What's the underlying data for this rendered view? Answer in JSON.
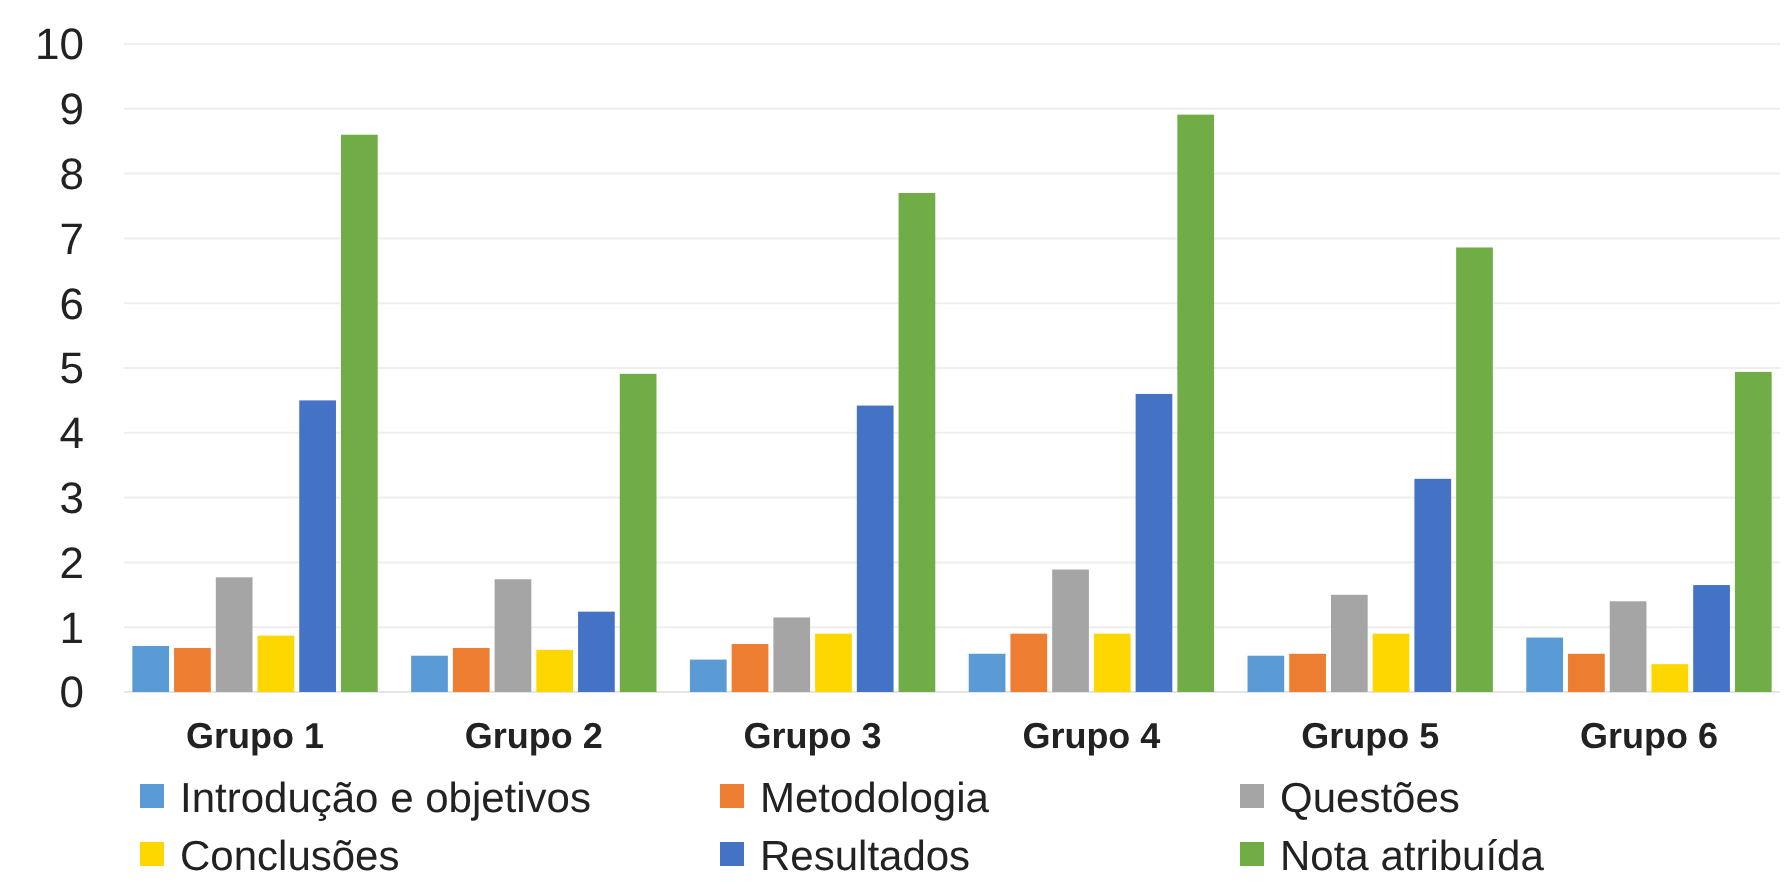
{
  "chart_data": {
    "type": "bar",
    "categories": [
      "Grupo 1",
      "Grupo 2",
      "Grupo 3",
      "Grupo 4",
      "Grupo 5",
      "Grupo 6"
    ],
    "series": [
      {
        "name": "Introdução e objetivos",
        "color": "#5b9bd5",
        "values": [
          0.71,
          0.56,
          0.5,
          0.59,
          0.56,
          0.84
        ]
      },
      {
        "name": "Metodologia",
        "color": "#ed7d31",
        "values": [
          0.68,
          0.68,
          0.74,
          0.9,
          0.59,
          0.59
        ]
      },
      {
        "name": "Questões",
        "color": "#a5a5a5",
        "values": [
          1.77,
          1.74,
          1.15,
          1.89,
          1.5,
          1.4
        ]
      },
      {
        "name": "Conclusões",
        "color": "#ffd700",
        "values": [
          0.87,
          0.65,
          0.9,
          0.9,
          0.9,
          0.43
        ]
      },
      {
        "name": "Resultados",
        "color": "#4472c4",
        "values": [
          4.5,
          1.24,
          4.42,
          4.6,
          3.29,
          1.65
        ]
      },
      {
        "name": "Nota atribuída",
        "color": "#70ad47",
        "values": [
          8.6,
          4.91,
          7.7,
          8.91,
          6.86,
          4.94
        ]
      }
    ],
    "ylim": [
      0,
      10
    ],
    "yticks": [
      0,
      1,
      2,
      3,
      4,
      5,
      6,
      7,
      8,
      9,
      10
    ],
    "grid": "y",
    "legend": "bottom"
  }
}
